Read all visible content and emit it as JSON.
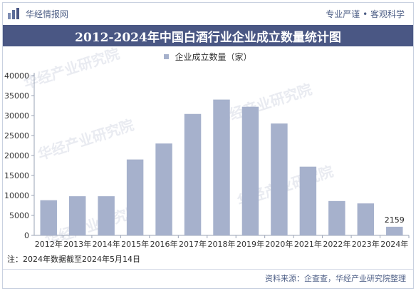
{
  "header": {
    "brand_name": "华经情报网",
    "slogan": "专业严谨 • 客观科学"
  },
  "note": "注：2024年数据截至2024年5月14日",
  "source": "资料来源：企查查，华经产业研究院整理",
  "watermark": "华经产业研究院",
  "colors": {
    "bar": "#a6b1cc",
    "title_band": "#4a5784",
    "axis": "#9aa3b5"
  },
  "chart_data": {
    "type": "bar",
    "title": "2012-2024年中国白酒行业企业成立数量统计图",
    "categories": [
      "2012年",
      "2013年",
      "2014年",
      "2015年",
      "2016年",
      "2017年",
      "2018年",
      "2019年",
      "2020年",
      "2021年",
      "2022年",
      "2023年",
      "2024年"
    ],
    "series": [
      {
        "name": "企业成立数量（家）",
        "values": [
          8800,
          9800,
          9800,
          19000,
          23000,
          30400,
          34000,
          32200,
          28000,
          17200,
          8600,
          8000,
          2159
        ]
      }
    ],
    "data_labels": [
      {
        "index": 12,
        "text": "2159"
      }
    ],
    "yticks": [
      0,
      5000,
      10000,
      15000,
      20000,
      25000,
      30000,
      35000,
      40000
    ],
    "ylim": [
      0,
      40000
    ],
    "xlabel": "",
    "ylabel": "",
    "legend": "top-center",
    "grid": false
  }
}
